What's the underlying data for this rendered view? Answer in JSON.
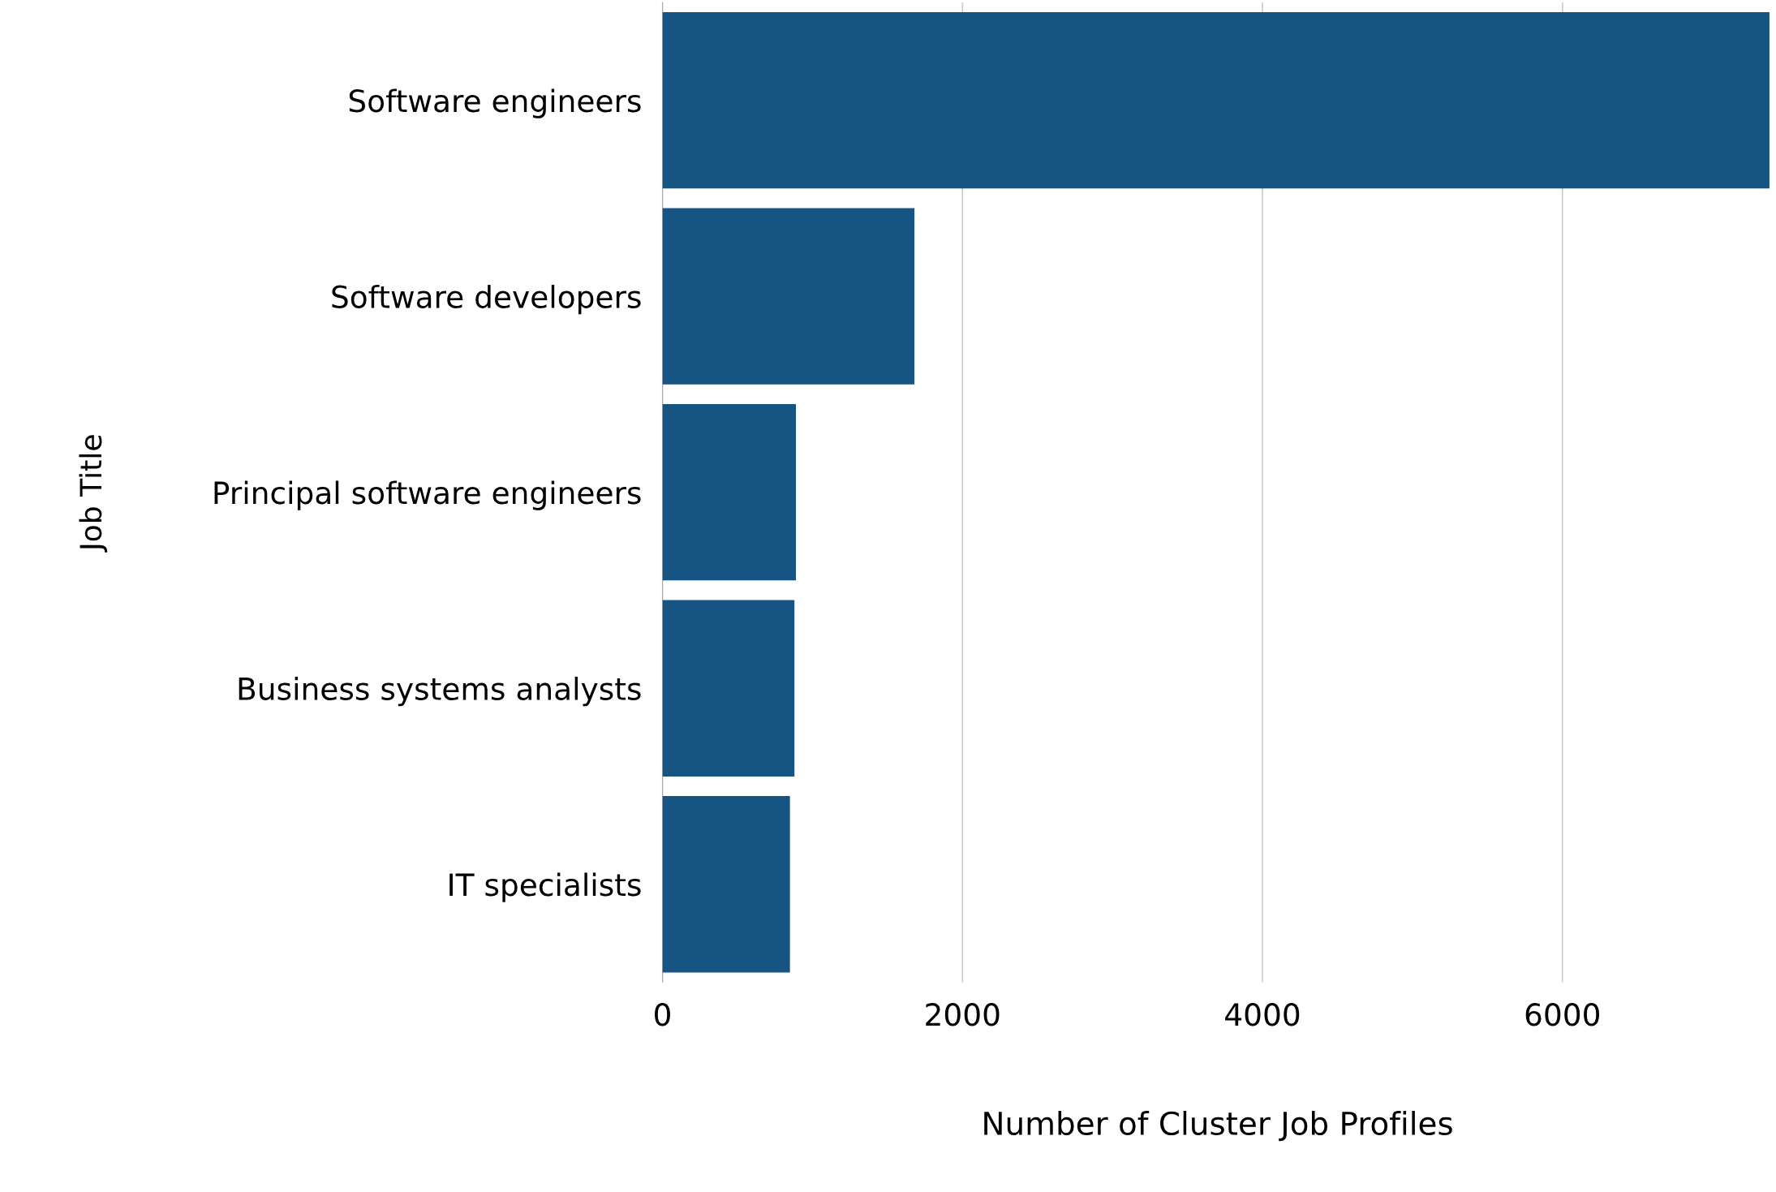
{
  "chart_data": {
    "type": "bar",
    "orientation": "horizontal",
    "xlabel": "Number of Cluster Job Profiles",
    "ylabel": "Job Title",
    "categories": [
      "Software engineers",
      "Software developers",
      "Principal software engineers",
      "Business systems analysts",
      "IT specialists"
    ],
    "values": [
      7380,
      1680,
      890,
      880,
      850
    ],
    "color": "#165483",
    "xlim": [
      0,
      7400
    ],
    "xticks": [
      0,
      2000,
      4000,
      6000
    ],
    "grid": "x",
    "legend": false
  }
}
